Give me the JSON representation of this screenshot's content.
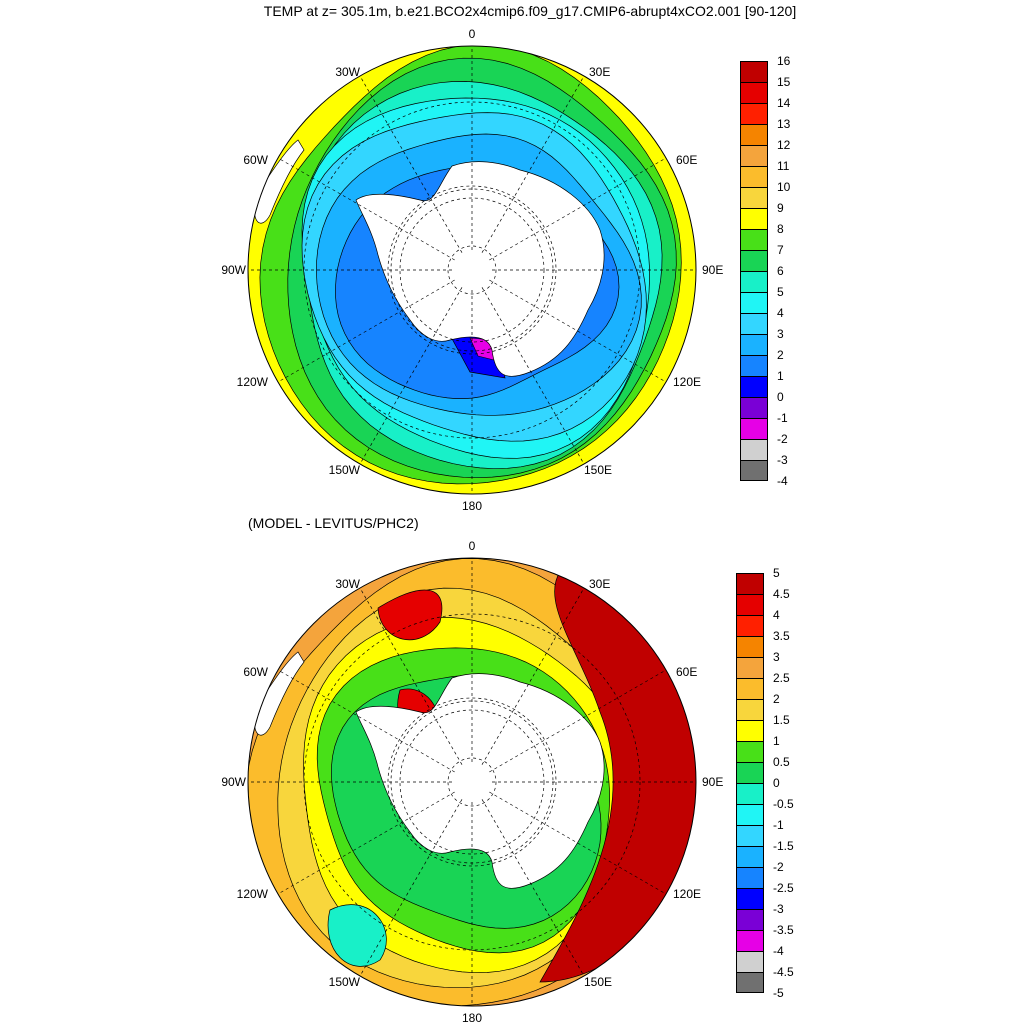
{
  "title": "TEMP at z= 305.1m, b.e21.BCO2x4cmip6.f09_g17.CMIP6-abrupt4xCO2.001 [90-120]",
  "subtitle": "(MODEL - LEVITUS/PHC2)",
  "lon_labels": [
    "0",
    "30E",
    "60E",
    "90E",
    "120E",
    "150E",
    "180",
    "150W",
    "120W",
    "90W",
    "60W",
    "30W"
  ],
  "panels": [
    {
      "name": "model-temperature",
      "colorbar_labels": [
        "16",
        "15",
        "14",
        "13",
        "12",
        "11",
        "10",
        "9",
        "8",
        "7",
        "6",
        "5",
        "4",
        "3",
        "2",
        "1",
        "0",
        "-1",
        "-2",
        "-3",
        "-4"
      ],
      "colors": [
        "#c00000",
        "#e50000",
        "#ff2000",
        "#f58400",
        "#f4a43c",
        "#fbbc2c",
        "#f8d63c",
        "#ffff00",
        "#48e018",
        "#19d455",
        "#18f0c8",
        "#20f5f5",
        "#33d6ff",
        "#1ab2ff",
        "#1684ff",
        "#0000ff",
        "#7a00d6",
        "#e600e6",
        "#d0d0d0",
        "#707070"
      ]
    },
    {
      "name": "model-minus-observation",
      "colorbar_labels": [
        "5",
        "4.5",
        "4",
        "3.5",
        "3",
        "2.5",
        "2",
        "1.5",
        "1",
        "0.5",
        "0",
        "-0.5",
        "-1",
        "-1.5",
        "-2",
        "-2.5",
        "-3",
        "-3.5",
        "-4",
        "-4.5",
        "-5"
      ],
      "colors": [
        "#c00000",
        "#e50000",
        "#ff2000",
        "#f58400",
        "#f4a43c",
        "#fbbc2c",
        "#f8d63c",
        "#ffff00",
        "#48e018",
        "#19d455",
        "#18f0c8",
        "#20f5f5",
        "#33d6ff",
        "#1ab2ff",
        "#1684ff",
        "#0000ff",
        "#7a00d6",
        "#e600e6",
        "#d0d0d0",
        "#707070"
      ]
    }
  ]
}
